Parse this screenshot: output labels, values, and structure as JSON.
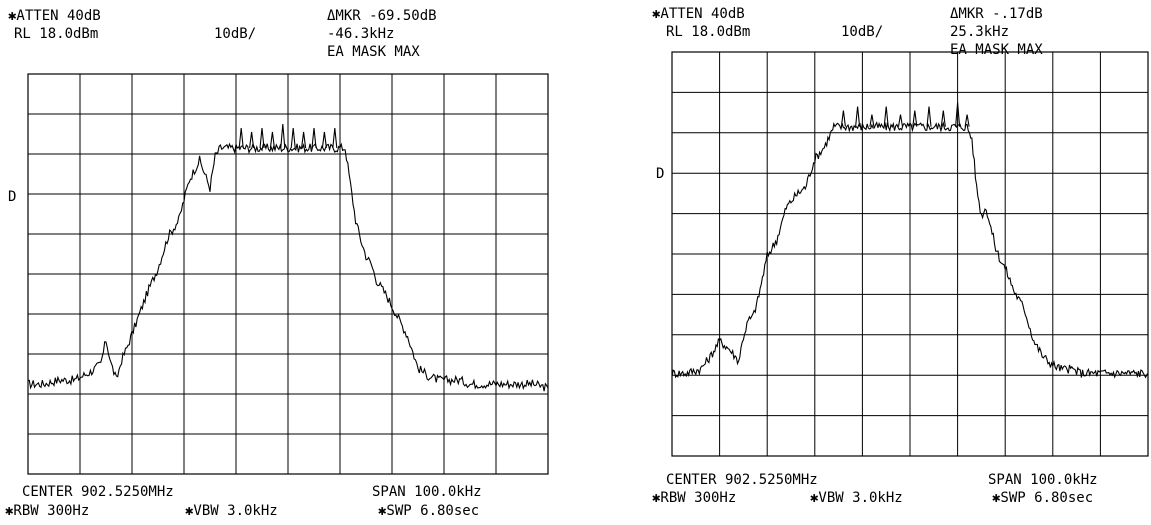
{
  "panels": [
    {
      "atten": "✱ATTEN 40dB",
      "rl": "RL 18.0dBm",
      "scale": "10dB/",
      "delta_marker": "ΔMKR -69.50dB",
      "delta_freq": "-46.3kHz",
      "mask": "EA MASK MAX",
      "d_marker": "D",
      "center": "CENTER 902.5250MHz",
      "span": "SPAN 100.0kHz",
      "rbw": "✱RBW 300Hz",
      "vbw": "✱VBW 3.0kHz",
      "swp": "✱SWP 6.80sec"
    },
    {
      "atten": "✱ATTEN 40dB",
      "rl": "RL 18.0dBm",
      "scale": "10dB/",
      "delta_marker": "ΔMKR -.17dB",
      "delta_freq": "25.3kHz",
      "mask": "EA MASK MAX",
      "d_marker": "D",
      "center": "CENTER 902.5250MHz",
      "span": "SPAN 100.0kHz",
      "rbw": "✱RBW 300Hz",
      "vbw": "✱VBW 3.0kHz",
      "swp": "✱SWP 6.80sec"
    }
  ],
  "chart_data": [
    {
      "type": "line",
      "xlim": [
        -50,
        50
      ],
      "ylim": [
        -81.5,
        18.5
      ],
      "grid": true,
      "x": [
        -50,
        -47,
        -44,
        -41,
        -38,
        -36,
        -35,
        -34,
        -33,
        -32,
        -31,
        -29,
        -27,
        -25,
        -23,
        -21,
        -19,
        -17,
        -15,
        -14,
        -13,
        -12,
        -11,
        -10,
        -9,
        -8,
        -7,
        -6,
        -5,
        -4,
        -3,
        -2,
        -1,
        0,
        1,
        2,
        3,
        4,
        5,
        6,
        7,
        8,
        9,
        10,
        11,
        12,
        13,
        14,
        15,
        16,
        17,
        19,
        21,
        23,
        25,
        27,
        29,
        31,
        33,
        35,
        37,
        39,
        41,
        44,
        47,
        50
      ],
      "y": [
        -59,
        -59,
        -58,
        -58,
        -56,
        -54,
        -48,
        -54,
        -58,
        -53,
        -50,
        -43,
        -36,
        -30,
        -22,
        -18,
        -8,
        -3,
        -10,
        -2,
        0,
        0,
        0,
        0,
        0,
        0,
        0,
        0,
        0,
        0,
        0,
        0,
        0,
        0,
        0,
        0,
        0,
        0,
        0,
        0,
        0,
        0,
        0,
        0,
        0,
        -9,
        -18,
        -23,
        -27,
        -29,
        -33,
        -37,
        -42,
        -47,
        -55,
        -57,
        -58,
        -58,
        -58,
        -59,
        -59,
        -59,
        -59,
        -59,
        -59,
        -60
      ],
      "peaks": [
        {
          "x": -9,
          "y": 5
        },
        {
          "x": -7,
          "y": 4
        },
        {
          "x": -5,
          "y": 5
        },
        {
          "x": -3,
          "y": 4
        },
        {
          "x": -1,
          "y": 6
        },
        {
          "x": 1,
          "y": 5
        },
        {
          "x": 3,
          "y": 4
        },
        {
          "x": 5,
          "y": 5
        },
        {
          "x": 7,
          "y": 4
        },
        {
          "x": 9,
          "y": 5
        }
      ]
    },
    {
      "type": "line",
      "xlim": [
        -50,
        50
      ],
      "ylim": [
        -81.5,
        18.5
      ],
      "grid": true,
      "x": [
        -50,
        -47,
        -44,
        -42,
        -40,
        -38,
        -36,
        -35,
        -34,
        -33,
        -32,
        -30,
        -28,
        -26,
        -24,
        -22,
        -20,
        -18,
        -16,
        -15,
        -14,
        -13,
        -12,
        -11,
        -10,
        -9,
        -8,
        -7,
        -6,
        -5,
        -4,
        -3,
        -2,
        -1,
        0,
        1,
        2,
        3,
        4,
        5,
        6,
        7,
        8,
        9,
        10,
        11,
        12,
        13,
        14,
        15,
        16,
        17,
        18,
        19,
        20,
        22,
        24,
        26,
        28,
        30,
        32,
        34,
        36,
        38,
        40,
        44,
        47,
        50
      ],
      "y": [
        -61,
        -61,
        -60,
        -57,
        -53,
        -55,
        -58,
        -52,
        -48,
        -47,
        -43,
        -32,
        -28,
        -20,
        -17,
        -15,
        -8,
        -5,
        0,
        0,
        0,
        0,
        0,
        0,
        0,
        0,
        0,
        0,
        0,
        0,
        0,
        0,
        0,
        0,
        0,
        0,
        0,
        0,
        0,
        0,
        0,
        0,
        0,
        0,
        0,
        0,
        0,
        -3,
        -15,
        -22,
        -20,
        -25,
        -30,
        -33,
        -35,
        -41,
        -45,
        -53,
        -57,
        -59,
        -60,
        -60,
        -61,
        -61,
        -61,
        -61,
        -61,
        -61
      ],
      "peaks": [
        {
          "x": -14,
          "y": 4
        },
        {
          "x": -11,
          "y": 5
        },
        {
          "x": -8,
          "y": 3
        },
        {
          "x": -5,
          "y": 5
        },
        {
          "x": -2,
          "y": 3
        },
        {
          "x": 1,
          "y": 4
        },
        {
          "x": 4,
          "y": 5
        },
        {
          "x": 7,
          "y": 4
        },
        {
          "x": 10,
          "y": 6
        },
        {
          "x": 12,
          "y": 3
        }
      ]
    }
  ]
}
